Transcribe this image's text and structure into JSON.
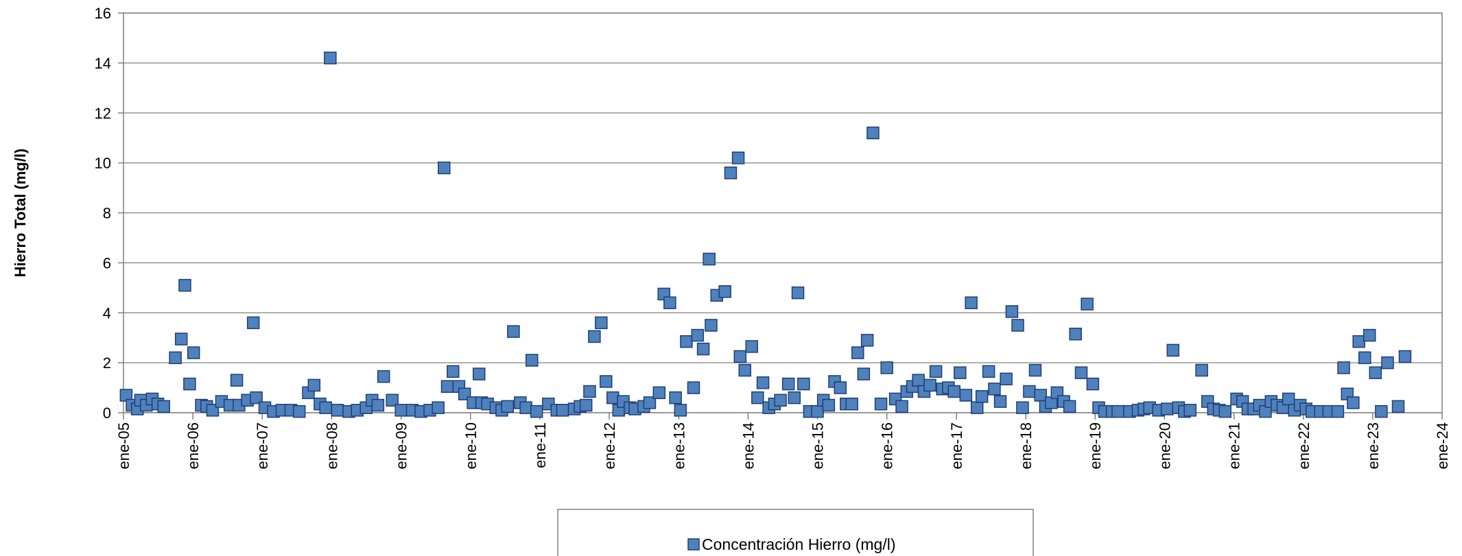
{
  "chart_data": {
    "type": "scatter",
    "ylabel": "Hierro Total (mg/l)",
    "xlabel": "",
    "title": "",
    "xlim": [
      "2005-01-01",
      "2024-01-01"
    ],
    "ylim": [
      0,
      16
    ],
    "yticks": [
      0,
      2,
      4,
      6,
      8,
      10,
      12,
      14,
      16
    ],
    "xtick_labels": [
      "ene-05",
      "ene-06",
      "ene-07",
      "ene-08",
      "ene-09",
      "ene-10",
      "ene-11",
      "ene-12",
      "ene-13",
      "ene-14",
      "ene-15",
      "ene-16",
      "ene-17",
      "ene-18",
      "ene-19",
      "ene-20",
      "ene-21",
      "ene-22",
      "ene-23",
      "ene-24"
    ],
    "grid": "horizontal",
    "legend": "bottom",
    "colors": {
      "marker_fill": "#4f81bd",
      "marker_stroke": "#1f3f74",
      "grid": "#808080",
      "axis": "#808080"
    },
    "series": [
      {
        "name": "Concentración Hierro (mg/l)",
        "points": [
          [
            "2005-01-15",
            0.7
          ],
          [
            "2005-02-15",
            0.3
          ],
          [
            "2005-03-15",
            0.15
          ],
          [
            "2005-04-01",
            0.5
          ],
          [
            "2005-05-01",
            0.3
          ],
          [
            "2005-06-01",
            0.55
          ],
          [
            "2005-07-01",
            0.35
          ],
          [
            "2005-08-01",
            0.25
          ],
          [
            "2005-10-01",
            2.2
          ],
          [
            "2005-11-01",
            2.95
          ],
          [
            "2005-11-20",
            5.1
          ],
          [
            "2005-12-15",
            1.15
          ],
          [
            "2006-01-05",
            2.4
          ],
          [
            "2006-02-15",
            0.3
          ],
          [
            "2006-03-15",
            0.25
          ],
          [
            "2006-04-15",
            0.1
          ],
          [
            "2006-06-01",
            0.45
          ],
          [
            "2006-07-15",
            0.3
          ],
          [
            "2006-08-20",
            1.3
          ],
          [
            "2006-09-01",
            0.3
          ],
          [
            "2006-10-15",
            0.5
          ],
          [
            "2006-11-15",
            3.6
          ],
          [
            "2006-12-01",
            0.6
          ],
          [
            "2007-01-15",
            0.2
          ],
          [
            "2007-03-01",
            0.05
          ],
          [
            "2007-04-15",
            0.1
          ],
          [
            "2007-06-01",
            0.1
          ],
          [
            "2007-07-15",
            0.05
          ],
          [
            "2007-09-01",
            0.8
          ],
          [
            "2007-10-01",
            1.1
          ],
          [
            "2007-11-01",
            0.35
          ],
          [
            "2007-12-01",
            0.2
          ],
          [
            "2007-12-25",
            14.2
          ],
          [
            "2008-02-01",
            0.1
          ],
          [
            "2008-04-01",
            0.05
          ],
          [
            "2008-05-15",
            0.1
          ],
          [
            "2008-07-01",
            0.2
          ],
          [
            "2008-08-01",
            0.5
          ],
          [
            "2008-09-01",
            0.3
          ],
          [
            "2008-10-01",
            1.45
          ],
          [
            "2008-11-15",
            0.5
          ],
          [
            "2009-01-01",
            0.1
          ],
          [
            "2009-03-01",
            0.1
          ],
          [
            "2009-04-15",
            0.05
          ],
          [
            "2009-06-01",
            0.1
          ],
          [
            "2009-07-15",
            0.2
          ],
          [
            "2009-08-15",
            9.8
          ],
          [
            "2009-09-01",
            1.05
          ],
          [
            "2009-10-01",
            1.65
          ],
          [
            "2009-11-01",
            1.05
          ],
          [
            "2009-12-01",
            0.75
          ],
          [
            "2010-01-15",
            0.4
          ],
          [
            "2010-02-15",
            1.55
          ],
          [
            "2010-03-01",
            0.4
          ],
          [
            "2010-04-01",
            0.35
          ],
          [
            "2010-05-15",
            0.2
          ],
          [
            "2010-06-15",
            0.1
          ],
          [
            "2010-07-15",
            0.25
          ],
          [
            "2010-08-15",
            3.25
          ],
          [
            "2010-09-20",
            0.4
          ],
          [
            "2010-10-20",
            0.2
          ],
          [
            "2010-11-20",
            2.1
          ],
          [
            "2010-12-15",
            0.05
          ],
          [
            "2011-02-15",
            0.35
          ],
          [
            "2011-04-01",
            0.1
          ],
          [
            "2011-05-01",
            0.1
          ],
          [
            "2011-07-01",
            0.15
          ],
          [
            "2011-08-01",
            0.25
          ],
          [
            "2011-09-01",
            0.3
          ],
          [
            "2011-09-20",
            0.85
          ],
          [
            "2011-10-15",
            3.05
          ],
          [
            "2011-11-20",
            3.6
          ],
          [
            "2011-12-15",
            1.25
          ],
          [
            "2012-01-20",
            0.6
          ],
          [
            "2012-02-20",
            0.1
          ],
          [
            "2012-03-15",
            0.45
          ],
          [
            "2012-04-20",
            0.2
          ],
          [
            "2012-05-15",
            0.15
          ],
          [
            "2012-07-01",
            0.25
          ],
          [
            "2012-08-01",
            0.4
          ],
          [
            "2012-09-20",
            0.8
          ],
          [
            "2012-10-15",
            4.75
          ],
          [
            "2012-11-15",
            4.4
          ],
          [
            "2012-12-15",
            0.6
          ],
          [
            "2013-01-10",
            0.1
          ],
          [
            "2013-02-10",
            2.85
          ],
          [
            "2013-03-20",
            1.0
          ],
          [
            "2013-04-10",
            3.1
          ],
          [
            "2013-05-10",
            2.55
          ],
          [
            "2013-06-10",
            6.15
          ],
          [
            "2013-06-20",
            3.5
          ],
          [
            "2013-07-20",
            4.7
          ],
          [
            "2013-09-01",
            4.85
          ],
          [
            "2013-10-01",
            9.6
          ],
          [
            "2013-11-10",
            10.2
          ],
          [
            "2013-11-20",
            2.25
          ],
          [
            "2013-12-15",
            1.7
          ],
          [
            "2014-01-20",
            2.65
          ],
          [
            "2014-02-20",
            0.6
          ],
          [
            "2014-03-20",
            1.2
          ],
          [
            "2014-04-20",
            0.2
          ],
          [
            "2014-05-20",
            0.35
          ],
          [
            "2014-06-20",
            0.5
          ],
          [
            "2014-08-01",
            1.15
          ],
          [
            "2014-09-01",
            0.6
          ],
          [
            "2014-09-20",
            4.8
          ],
          [
            "2014-10-20",
            1.15
          ],
          [
            "2014-11-20",
            0.05
          ],
          [
            "2015-01-01",
            0.05
          ],
          [
            "2015-02-01",
            0.5
          ],
          [
            "2015-03-01",
            0.3
          ],
          [
            "2015-04-01",
            1.25
          ],
          [
            "2015-05-01",
            1.0
          ],
          [
            "2015-06-01",
            0.35
          ],
          [
            "2015-07-01",
            0.35
          ],
          [
            "2015-08-01",
            2.4
          ],
          [
            "2015-09-01",
            1.55
          ],
          [
            "2015-09-20",
            2.9
          ],
          [
            "2015-10-20",
            11.2
          ],
          [
            "2015-12-01",
            0.35
          ],
          [
            "2016-01-01",
            1.8
          ],
          [
            "2016-02-15",
            0.55
          ],
          [
            "2016-03-20",
            0.25
          ],
          [
            "2016-04-15",
            0.85
          ],
          [
            "2016-05-15",
            1.05
          ],
          [
            "2016-06-15",
            1.3
          ],
          [
            "2016-07-15",
            0.85
          ],
          [
            "2016-08-15",
            1.1
          ],
          [
            "2016-09-15",
            1.65
          ],
          [
            "2016-10-20",
            0.95
          ],
          [
            "2016-11-20",
            1.0
          ],
          [
            "2016-12-20",
            0.85
          ],
          [
            "2017-01-20",
            1.6
          ],
          [
            "2017-02-20",
            0.7
          ],
          [
            "2017-03-20",
            4.4
          ],
          [
            "2017-04-20",
            0.2
          ],
          [
            "2017-05-15",
            0.65
          ],
          [
            "2017-06-20",
            1.65
          ],
          [
            "2017-07-20",
            0.95
          ],
          [
            "2017-08-20",
            0.45
          ],
          [
            "2017-09-20",
            1.35
          ],
          [
            "2017-10-20",
            4.05
          ],
          [
            "2017-11-20",
            3.5
          ],
          [
            "2017-12-15",
            0.2
          ],
          [
            "2018-01-20",
            0.85
          ],
          [
            "2018-02-20",
            1.7
          ],
          [
            "2018-03-20",
            0.7
          ],
          [
            "2018-04-15",
            0.25
          ],
          [
            "2018-05-15",
            0.4
          ],
          [
            "2018-06-15",
            0.8
          ],
          [
            "2018-07-20",
            0.45
          ],
          [
            "2018-08-20",
            0.25
          ],
          [
            "2018-09-20",
            3.15
          ],
          [
            "2018-10-20",
            1.6
          ],
          [
            "2018-11-20",
            4.35
          ],
          [
            "2018-12-20",
            1.15
          ],
          [
            "2019-01-20",
            0.2
          ],
          [
            "2019-02-20",
            0.05
          ],
          [
            "2019-04-01",
            0.05
          ],
          [
            "2019-05-01",
            0.05
          ],
          [
            "2019-07-01",
            0.05
          ],
          [
            "2019-08-15",
            0.1
          ],
          [
            "2019-09-15",
            0.15
          ],
          [
            "2019-10-15",
            0.2
          ],
          [
            "2019-12-01",
            0.1
          ],
          [
            "2020-01-15",
            0.15
          ],
          [
            "2020-02-15",
            2.5
          ],
          [
            "2020-03-15",
            0.2
          ],
          [
            "2020-04-15",
            0.05
          ],
          [
            "2020-05-15",
            0.1
          ],
          [
            "2020-07-15",
            1.7
          ],
          [
            "2020-08-15",
            0.45
          ],
          [
            "2020-09-15",
            0.15
          ],
          [
            "2020-10-15",
            0.1
          ],
          [
            "2020-11-15",
            0.05
          ],
          [
            "2021-01-15",
            0.55
          ],
          [
            "2021-02-15",
            0.45
          ],
          [
            "2021-03-15",
            0.15
          ],
          [
            "2021-04-15",
            0.15
          ],
          [
            "2021-05-15",
            0.3
          ],
          [
            "2021-06-15",
            0.05
          ],
          [
            "2021-07-15",
            0.45
          ],
          [
            "2021-08-15",
            0.3
          ],
          [
            "2021-09-15",
            0.2
          ],
          [
            "2021-10-15",
            0.55
          ],
          [
            "2021-11-15",
            0.1
          ],
          [
            "2021-12-15",
            0.3
          ],
          [
            "2022-01-15",
            0.15
          ],
          [
            "2022-02-15",
            0.05
          ],
          [
            "2022-04-01",
            0.05
          ],
          [
            "2022-05-15",
            0.05
          ],
          [
            "2022-07-01",
            0.05
          ],
          [
            "2022-08-01",
            1.8
          ],
          [
            "2022-08-20",
            0.75
          ],
          [
            "2022-09-20",
            0.4
          ],
          [
            "2022-10-20",
            2.85
          ],
          [
            "2022-11-20",
            2.2
          ],
          [
            "2022-12-15",
            3.1
          ],
          [
            "2023-01-15",
            1.6
          ],
          [
            "2023-02-15",
            0.05
          ],
          [
            "2023-03-20",
            2.0
          ],
          [
            "2023-05-15",
            0.25
          ],
          [
            "2023-06-20",
            2.25
          ]
        ]
      }
    ]
  }
}
